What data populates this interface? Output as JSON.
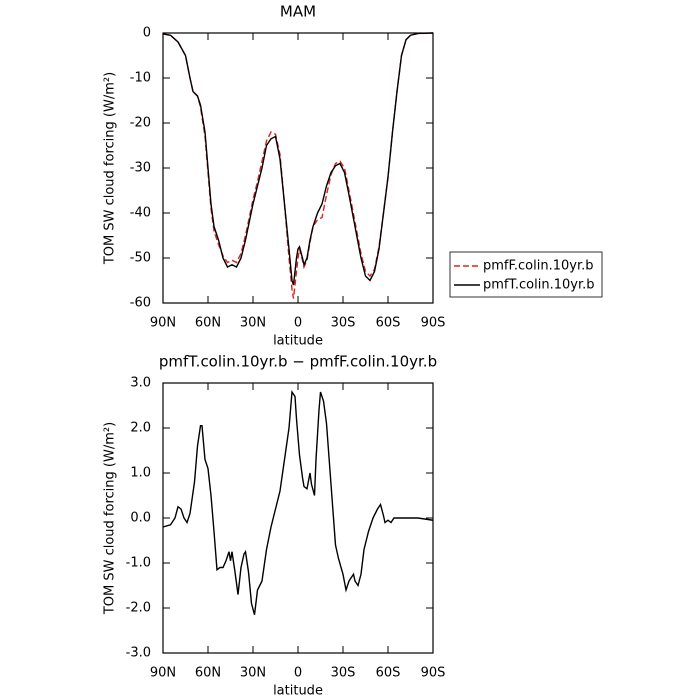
{
  "chart_data": [
    {
      "type": "line",
      "title": "MAM",
      "xlabel": "latitude",
      "ylabel": "TOM SW cloud forcing (W/m²)",
      "xlim": [
        90,
        -90
      ],
      "ylim": [
        -60,
        0
      ],
      "xticks": [
        {
          "value": 90,
          "label": "90N"
        },
        {
          "value": 60,
          "label": "60N"
        },
        {
          "value": 30,
          "label": "30N"
        },
        0,
        {
          "value": -30,
          "label": "30S"
        },
        {
          "value": -60,
          "label": "60S"
        },
        {
          "value": -90,
          "label": "90S"
        }
      ],
      "yticks": [
        0,
        -10,
        -20,
        -30,
        -40,
        -50,
        -60
      ],
      "legend": "right",
      "x": [
        90,
        85,
        80,
        75,
        72,
        70,
        67,
        65,
        62,
        60,
        58,
        56,
        53,
        50,
        47,
        44,
        41,
        38,
        35,
        30,
        27,
        24,
        21,
        18,
        15,
        12,
        9,
        6,
        4,
        3,
        1,
        0,
        -1,
        -3,
        -4,
        -6,
        -8,
        -10,
        -13,
        -16,
        -19,
        -22,
        -25,
        -28,
        -31,
        -34,
        -38,
        -42,
        -45,
        -48,
        -51,
        -54,
        -57,
        -60,
        -63,
        -66,
        -69,
        -72,
        -75,
        -80,
        -90
      ],
      "series": [
        {
          "name": "pmfF.colin.10yr.b",
          "color": "#e0201b",
          "line_style": "dashed",
          "values": [
            -0.2,
            -0.5,
            -2,
            -5,
            -10,
            -13,
            -14,
            -16.5,
            -23,
            -31,
            -39,
            -44,
            -47,
            -49.5,
            -51,
            -50.5,
            -51,
            -49,
            -45,
            -37,
            -33,
            -28.5,
            -24,
            -22,
            -22.5,
            -27,
            -38,
            -50,
            -57,
            -59,
            -53,
            -50,
            -48,
            -50.5,
            -52,
            -50.5,
            -46.5,
            -43,
            -41.5,
            -41,
            -36,
            -31.5,
            -29,
            -28.5,
            -30,
            -35,
            -42,
            -49,
            -53,
            -54,
            -52.5,
            -47.5,
            -40,
            -32,
            -22,
            -13,
            -5,
            -1.5,
            -0.5,
            -0.1,
            0
          ]
        },
        {
          "name": "pmfT.colin.10yr.b",
          "color": "#000000",
          "line_style": "solid",
          "values": [
            -0.2,
            -0.5,
            -2,
            -5,
            -10,
            -13,
            -14,
            -16,
            -22,
            -30,
            -38,
            -43,
            -46,
            -50,
            -52,
            -51.5,
            -52,
            -50,
            -46,
            -38,
            -34,
            -30,
            -25,
            -23.5,
            -23,
            -28,
            -38,
            -48,
            -55,
            -56,
            -50,
            -48,
            -47.5,
            -50,
            -51.5,
            -50,
            -46,
            -43,
            -40,
            -38,
            -34,
            -31,
            -29.5,
            -29,
            -31,
            -36,
            -43,
            -50,
            -54,
            -55,
            -53,
            -48,
            -40,
            -32,
            -22,
            -13,
            -5,
            -1.5,
            -0.5,
            -0.1,
            0
          ]
        }
      ]
    },
    {
      "type": "line",
      "title": "pmfT.colin.10yr.b − pmfF.colin.10yr.b",
      "xlabel": "latitude",
      "ylabel": "TOM SW cloud forcing (W/m²)",
      "xlim": [
        90,
        -90
      ],
      "ylim": [
        -3,
        3
      ],
      "xticks": [
        {
          "value": 90,
          "label": "90N"
        },
        {
          "value": 60,
          "label": "60N"
        },
        {
          "value": 30,
          "label": "30N"
        },
        0,
        {
          "value": -30,
          "label": "30S"
        },
        {
          "value": -60,
          "label": "60S"
        },
        {
          "value": -90,
          "label": "90S"
        }
      ],
      "yticks": [
        {
          "value": 3,
          "label": "3.0"
        },
        {
          "value": 2,
          "label": "2.0"
        },
        {
          "value": 1,
          "label": "1.0"
        },
        {
          "value": 0,
          "label": "0.0"
        },
        {
          "value": -1,
          "label": "-1.0"
        },
        {
          "value": -2,
          "label": "-2.0"
        },
        {
          "value": -3,
          "label": "-3.0"
        }
      ],
      "x": [
        90,
        85,
        82,
        80,
        78,
        76,
        74,
        72,
        69,
        67,
        65,
        64,
        62,
        60,
        58,
        56,
        54,
        52,
        50,
        48,
        46,
        45,
        44,
        42,
        40,
        38,
        36,
        35,
        33,
        31,
        29,
        27,
        24,
        21,
        18,
        15,
        12,
        9,
        6,
        4,
        2,
        1,
        -1,
        -3,
        -4,
        -6,
        -8,
        -9,
        -11,
        -12,
        -14,
        -15,
        -17,
        -19,
        -21,
        -23,
        -25,
        -27,
        -30,
        -32,
        -34,
        -35,
        -37,
        -38,
        -40,
        -42,
        -44,
        -47,
        -50,
        -53,
        -55,
        -57,
        -58,
        -60,
        -62,
        -64,
        -68,
        -75,
        -80,
        -90
      ],
      "series": [
        {
          "color": "#000000",
          "line_style": "solid",
          "values": [
            -0.2,
            -0.15,
            0,
            0.25,
            0.2,
            0,
            -0.1,
            0.1,
            0.8,
            1.6,
            2.05,
            2.05,
            1.3,
            1.1,
            0.5,
            -0.3,
            -1.15,
            -1.1,
            -1.1,
            -0.95,
            -0.75,
            -0.95,
            -0.75,
            -1.2,
            -1.7,
            -1.1,
            -0.8,
            -0.75,
            -1.2,
            -1.9,
            -2.15,
            -1.6,
            -1.4,
            -0.7,
            -0.2,
            0.2,
            0.6,
            1.3,
            2,
            2.8,
            2.7,
            2.2,
            1.4,
            0.9,
            0.7,
            0.65,
            1,
            0.75,
            0.5,
            1.3,
            2.4,
            2.8,
            2.6,
            2.1,
            1.2,
            0.3,
            -0.6,
            -0.9,
            -1.25,
            -1.6,
            -1.4,
            -1.35,
            -1.25,
            -1.4,
            -1.5,
            -1.25,
            -0.7,
            -0.3,
            0,
            0.2,
            0.3,
            0.05,
            -0.1,
            -0.05,
            -0.1,
            0,
            0,
            0,
            0,
            -0.05
          ]
        }
      ]
    }
  ]
}
